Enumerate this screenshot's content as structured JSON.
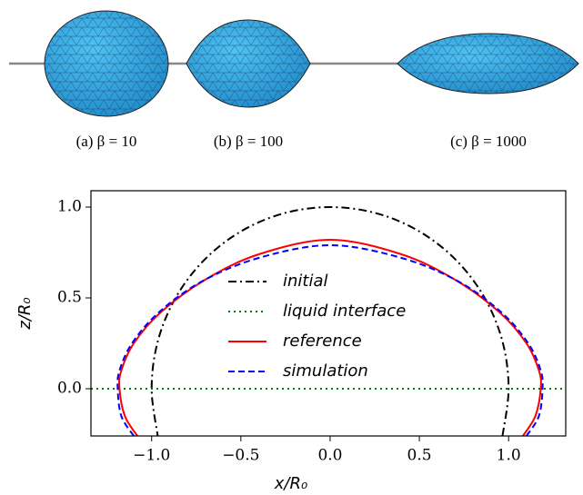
{
  "figures": [
    {
      "caption": "(a) β = 10"
    },
    {
      "caption": "(b) β = 100"
    },
    {
      "caption": "(c) β = 1000"
    }
  ],
  "chart_data": {
    "type": "line",
    "xlabel": "x/R₀",
    "ylabel": "z/R₀",
    "xlim": [
      -1.34,
      1.32
    ],
    "ylim": [
      -0.26,
      1.09
    ],
    "xticks": [
      {
        "value": -1.0,
        "label": "−1.0"
      },
      {
        "value": -0.5,
        "label": "−0.5"
      },
      {
        "value": 0.0,
        "label": "0.0"
      },
      {
        "value": 0.5,
        "label": "0.5"
      },
      {
        "value": 1.0,
        "label": "1.0"
      }
    ],
    "yticks": [
      {
        "value": 0.0,
        "label": "0.0"
      },
      {
        "value": 0.5,
        "label": "0.5"
      },
      {
        "value": 1.0,
        "label": "1.0"
      }
    ],
    "grid": false,
    "legend": "center",
    "series": [
      {
        "name": "initial",
        "color": "#000000",
        "linestyle": "dashdot",
        "x": [
          0.966,
          1,
          0.966,
          0.866,
          0.707,
          0.5,
          0.259,
          0,
          -0.259,
          -0.5,
          -0.707,
          -0.866,
          -0.966,
          -1,
          -0.966
        ],
        "values": [
          -0.259,
          0,
          0.259,
          0.5,
          0.707,
          0.866,
          0.966,
          1,
          0.966,
          0.866,
          0.707,
          0.5,
          0.259,
          0,
          -0.259
        ]
      },
      {
        "name": "liquid interface",
        "color": "#008000",
        "linestyle": "dotted",
        "x": [
          -1.34,
          1.32
        ],
        "values": [
          0,
          0
        ]
      },
      {
        "name": "reference",
        "color": "#ff0000",
        "linestyle": "solid",
        "x": [
          -1.08,
          -1.15,
          -1.18,
          -1.17,
          -1.1,
          -0.95,
          -0.7,
          -0.4,
          0,
          0.4,
          0.7,
          0.95,
          1.1,
          1.17,
          1.18,
          1.15,
          1.08
        ],
        "values": [
          -0.26,
          -0.15,
          0,
          0.1,
          0.25,
          0.42,
          0.6,
          0.74,
          0.82,
          0.74,
          0.6,
          0.42,
          0.25,
          0.1,
          0,
          -0.15,
          -0.26
        ]
      },
      {
        "name": "simulation",
        "color": "#0000ff",
        "linestyle": "dashed",
        "x": [
          -1.1,
          -1.17,
          -1.19,
          -1.18,
          -1.11,
          -0.96,
          -0.72,
          -0.4,
          0,
          0.4,
          0.72,
          0.96,
          1.11,
          1.18,
          1.19,
          1.17,
          1.1
        ],
        "values": [
          -0.26,
          -0.15,
          0,
          0.1,
          0.25,
          0.42,
          0.59,
          0.72,
          0.79,
          0.72,
          0.59,
          0.42,
          0.25,
          0.1,
          0,
          -0.15,
          -0.26
        ]
      }
    ]
  }
}
